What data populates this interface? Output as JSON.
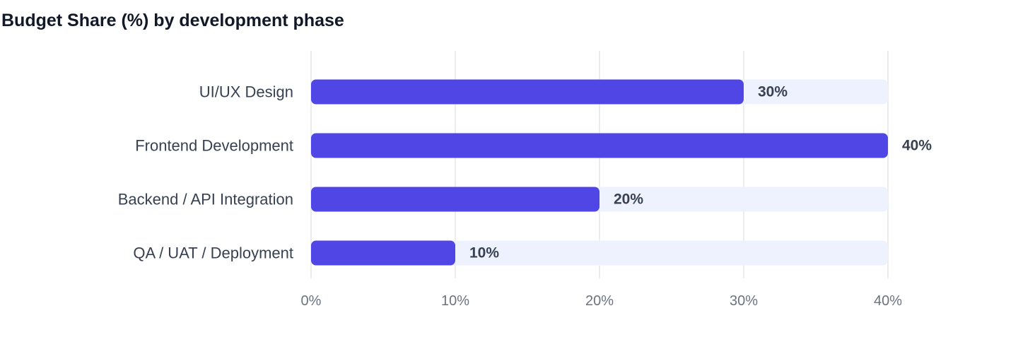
{
  "chart_data": {
    "type": "bar",
    "orientation": "horizontal",
    "title": "Budget Share (%) by development phase",
    "categories": [
      "UI/UX Design",
      "Frontend Development",
      "Backend / API Integration",
      "QA / UAT / Deployment"
    ],
    "values": [
      30,
      40,
      20,
      10
    ],
    "data_labels": [
      "30%",
      "40%",
      "20%",
      "10%"
    ],
    "xlim": [
      0,
      40
    ],
    "ticks": [
      0,
      10,
      20,
      30,
      40
    ],
    "tick_labels": [
      "0%",
      "10%",
      "20%",
      "30%",
      "40%"
    ],
    "xlabel": "",
    "ylabel": "",
    "grid": true,
    "legend": "none",
    "colors": {
      "bar": "#4f46e5",
      "track": "#eef2ff",
      "grid": "#e5e7eb"
    }
  }
}
